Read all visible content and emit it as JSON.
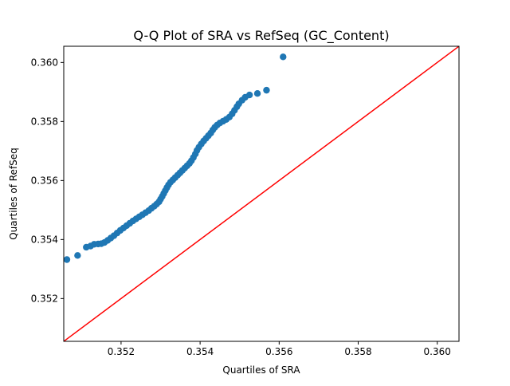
{
  "chart_data": {
    "type": "scatter",
    "title": "Q-Q Plot of SRA vs RefSeq (GC_Content)",
    "xlabel": "Quartiles of SRA",
    "ylabel": "Quartiles of RefSeq",
    "xlim": [
      0.35055,
      0.36055
    ],
    "ylim": [
      0.35055,
      0.36055
    ],
    "xticks": [
      {
        "value": 0.352,
        "label": "0.352"
      },
      {
        "value": 0.354,
        "label": "0.354"
      },
      {
        "value": 0.356,
        "label": "0.356"
      },
      {
        "value": 0.358,
        "label": "0.358"
      },
      {
        "value": 0.36,
        "label": "0.360"
      }
    ],
    "yticks": [
      {
        "value": 0.352,
        "label": "0.352"
      },
      {
        "value": 0.354,
        "label": "0.354"
      },
      {
        "value": 0.356,
        "label": "0.356"
      },
      {
        "value": 0.358,
        "label": "0.358"
      },
      {
        "value": 0.36,
        "label": "0.360"
      }
    ],
    "grid": false,
    "reference_line": {
      "from": [
        0.35055,
        0.35055
      ],
      "to": [
        0.36055,
        0.36055
      ],
      "color": "#ff0000"
    },
    "marker_color": "#1f77b4",
    "points": [
      [
        0.35063,
        0.35332
      ],
      [
        0.3509,
        0.35346
      ],
      [
        0.35112,
        0.35374
      ],
      [
        0.35123,
        0.35378
      ],
      [
        0.35132,
        0.35384
      ],
      [
        0.35142,
        0.35385
      ],
      [
        0.3515,
        0.35386
      ],
      [
        0.35158,
        0.3539
      ],
      [
        0.35166,
        0.35397
      ],
      [
        0.35174,
        0.35405
      ],
      [
        0.35182,
        0.35413
      ],
      [
        0.3519,
        0.35422
      ],
      [
        0.35198,
        0.35431
      ],
      [
        0.35206,
        0.35439
      ],
      [
        0.35214,
        0.35447
      ],
      [
        0.35222,
        0.35455
      ],
      [
        0.3523,
        0.35463
      ],
      [
        0.35238,
        0.3547
      ],
      [
        0.35246,
        0.35477
      ],
      [
        0.35254,
        0.35484
      ],
      [
        0.35262,
        0.35491
      ],
      [
        0.3527,
        0.35498
      ],
      [
        0.35277,
        0.35506
      ],
      [
        0.35284,
        0.35513
      ],
      [
        0.3529,
        0.3552
      ],
      [
        0.35296,
        0.35528
      ],
      [
        0.353,
        0.35537
      ],
      [
        0.35304,
        0.35546
      ],
      [
        0.35308,
        0.35556
      ],
      [
        0.35312,
        0.35566
      ],
      [
        0.35316,
        0.35576
      ],
      [
        0.3532,
        0.35585
      ],
      [
        0.35325,
        0.35594
      ],
      [
        0.35331,
        0.35602
      ],
      [
        0.35337,
        0.3561
      ],
      [
        0.35343,
        0.35618
      ],
      [
        0.35349,
        0.35626
      ],
      [
        0.35355,
        0.35634
      ],
      [
        0.35361,
        0.35642
      ],
      [
        0.35367,
        0.3565
      ],
      [
        0.35373,
        0.35658
      ],
      [
        0.35378,
        0.35667
      ],
      [
        0.35383,
        0.35678
      ],
      [
        0.35388,
        0.3569
      ],
      [
        0.35392,
        0.35702
      ],
      [
        0.35397,
        0.35713
      ],
      [
        0.35403,
        0.35724
      ],
      [
        0.35409,
        0.35734
      ],
      [
        0.35415,
        0.35743
      ],
      [
        0.35421,
        0.35752
      ],
      [
        0.35427,
        0.35761
      ],
      [
        0.35432,
        0.35771
      ],
      [
        0.35437,
        0.3578
      ],
      [
        0.35443,
        0.35788
      ],
      [
        0.3545,
        0.35795
      ],
      [
        0.35458,
        0.35801
      ],
      [
        0.35466,
        0.35807
      ],
      [
        0.35474,
        0.35815
      ],
      [
        0.35481,
        0.35826
      ],
      [
        0.35487,
        0.35838
      ],
      [
        0.35493,
        0.3585
      ],
      [
        0.35498,
        0.3586
      ],
      [
        0.35506,
        0.35872
      ],
      [
        0.35514,
        0.35882
      ],
      [
        0.35525,
        0.3589
      ],
      [
        0.35545,
        0.35895
      ],
      [
        0.35568,
        0.35906
      ],
      [
        0.3561,
        0.36019
      ]
    ]
  }
}
